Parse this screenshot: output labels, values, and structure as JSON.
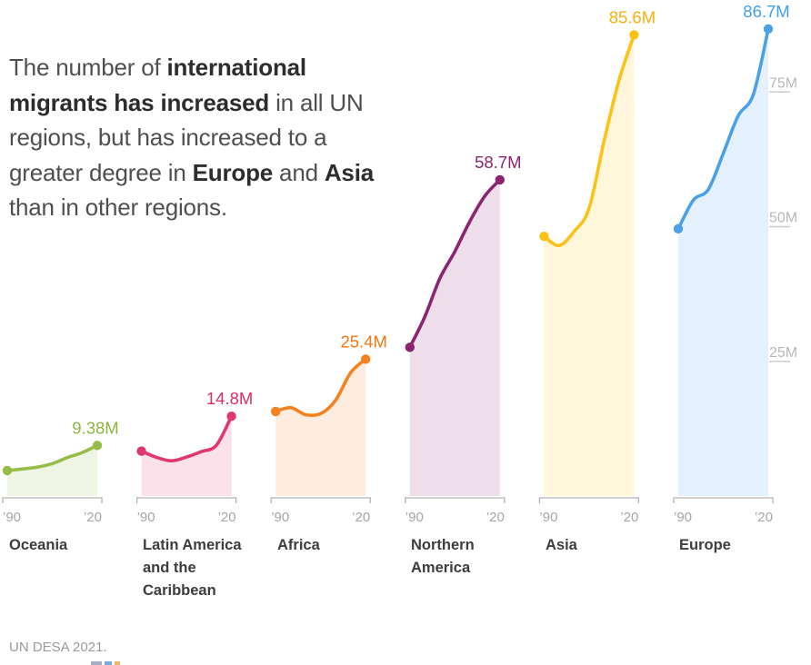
{
  "title": {
    "segments": [
      {
        "text": "The number of ",
        "bold": false
      },
      {
        "text": "international migrants has increased",
        "bold": true
      },
      {
        "text": " in all UN regions, but has increased to a greater degree in ",
        "bold": false
      },
      {
        "text": "Europe",
        "bold": true
      },
      {
        "text": " and ",
        "bold": false
      },
      {
        "text": "Asia",
        "bold": true
      },
      {
        "text": " than in other regions.",
        "bold": false
      }
    ]
  },
  "source": "UN DESA 2021.",
  "chart_data": {
    "type": "area",
    "description": "Small-multiple smoothed area/line charts of international migrant stock by UN region, 1990-2020, millions",
    "x": [
      1990,
      1995,
      2000,
      2005,
      2010,
      2015,
      2020
    ],
    "x_tick_labels": [
      "’90",
      "’20"
    ],
    "ylim": [
      0,
      92
    ],
    "y_axis_ticks": [
      {
        "label": "25M",
        "value": 25
      },
      {
        "label": "50M",
        "value": 50
      },
      {
        "label": "75M",
        "value": 75
      }
    ],
    "legend": "none",
    "grid": "right-edge tick labels only",
    "series": [
      {
        "name": "Oceania",
        "color": "#96bd4a",
        "label_color": "#8db541",
        "end_label": "9.38M",
        "values": [
          4.73,
          5.02,
          5.36,
          6.02,
          7.13,
          8.07,
          9.38
        ]
      },
      {
        "name": "Latin America and the Caribbean",
        "color": "#e0376f",
        "label_color": "#de2e68",
        "end_label": "14.8M",
        "values": [
          8.33,
          7.19,
          6.54,
          7.23,
          8.25,
          9.44,
          14.8
        ]
      },
      {
        "name": "Africa",
        "color": "#f5811f",
        "label_color": "#f47712",
        "end_label": "25.4M",
        "values": [
          15.7,
          16.4,
          15.1,
          15.3,
          17.8,
          22.9,
          25.4
        ]
      },
      {
        "name": "Northern America",
        "color": "#8c2472",
        "label_color": "#8c2472",
        "end_label": "58.7M",
        "values": [
          27.6,
          33.3,
          40.4,
          45.4,
          51.0,
          55.7,
          58.7
        ]
      },
      {
        "name": "Asia",
        "color": "#fcc316",
        "label_color": "#f6b00e",
        "end_label": "85.6M",
        "values": [
          48.2,
          46.5,
          49.1,
          53.4,
          65.9,
          77.2,
          85.6
        ]
      },
      {
        "name": "Europe",
        "color": "#4aa1e8",
        "label_color": "#42a0ea",
        "end_label": "86.7M",
        "values": [
          49.6,
          54.9,
          56.9,
          63.6,
          70.6,
          74.5,
          86.7
        ]
      }
    ]
  }
}
